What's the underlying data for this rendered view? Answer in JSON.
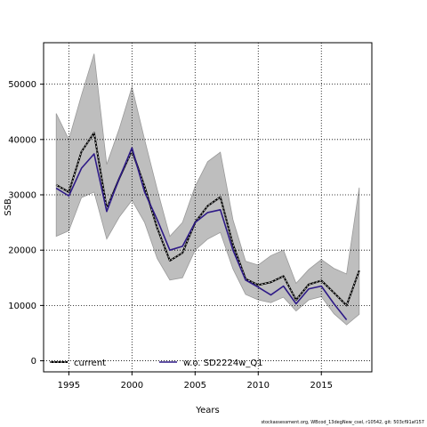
{
  "footnote": "stockassessment.org, WBcod_13degNew_csel, r10542, git: 503cf91af157",
  "colors": {
    "band": "#bebebe",
    "band_stroke": "#9a9a9a",
    "current": "#000000",
    "alt": "#2e1a87",
    "grid": "#000000"
  },
  "chart_data": {
    "type": "line",
    "xlabel": "Years",
    "ylabel": "SSB",
    "xlim": [
      1993,
      2019
    ],
    "ylim": [
      -2000,
      57500
    ],
    "xticks": [
      1995,
      2000,
      2005,
      2010,
      2015
    ],
    "yticks": [
      0,
      10000,
      20000,
      30000,
      40000,
      50000
    ],
    "grid": true,
    "legend": "bottom",
    "x": [
      1994,
      1995,
      1996,
      1997,
      1998,
      1999,
      2000,
      2001,
      2002,
      2003,
      2004,
      2005,
      2006,
      2007,
      2008,
      2009,
      2010,
      2011,
      2012,
      2013,
      2014,
      2015,
      2016,
      2017,
      2018
    ],
    "band": {
      "upper": [
        44700,
        40000,
        48000,
        55500,
        35500,
        42000,
        49500,
        40000,
        31000,
        22500,
        25000,
        31500,
        36000,
        37700,
        25500,
        18000,
        17300,
        19000,
        20000,
        14000,
        16500,
        18300,
        16700,
        15700,
        31300
      ],
      "lower": [
        22500,
        23500,
        29500,
        30500,
        22000,
        26000,
        29000,
        25000,
        18500,
        14600,
        15000,
        20000,
        22000,
        23200,
        16600,
        12000,
        11000,
        10500,
        11500,
        9000,
        11000,
        11600,
        8500,
        6500,
        8400
      ]
    },
    "series": [
      {
        "name": "current",
        "values": [
          31800,
          30500,
          37800,
          41200,
          27500,
          33000,
          38000,
          31500,
          24000,
          18100,
          19500,
          25000,
          28000,
          29600,
          21000,
          14800,
          13700,
          14200,
          15300,
          11000,
          13800,
          14500,
          12300,
          10000,
          16300
        ]
      },
      {
        "name": "w.o. SD2224w_Q1",
        "values": [
          31200,
          29800,
          34800,
          37400,
          27000,
          33000,
          38500,
          30500,
          25500,
          20000,
          20700,
          25000,
          26800,
          27300,
          20000,
          14600,
          13300,
          11900,
          13500,
          10300,
          13000,
          13500,
          10300,
          7400,
          null
        ]
      }
    ]
  }
}
